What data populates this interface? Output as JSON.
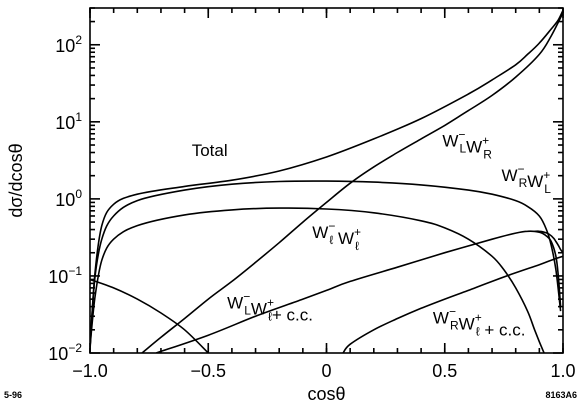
{
  "chart_data": {
    "type": "line",
    "xlabel": "cosθ",
    "ylabel": "dσ/dcosθ",
    "xlim": [
      -1.0,
      1.0
    ],
    "ylim": [
      0.01,
      300
    ],
    "yscale": "log",
    "grid": false,
    "x_ticks": [
      {
        "value": -1.0,
        "label": "−1.0"
      },
      {
        "value": -0.5,
        "label": "−0.5"
      },
      {
        "value": 0.0,
        "label": "0"
      },
      {
        "value": 0.5,
        "label": "0.5"
      },
      {
        "value": 1.0,
        "label": "1.0"
      }
    ],
    "y_ticks": [
      {
        "value": 0.01,
        "base": "10",
        "exp": "−2"
      },
      {
        "value": 0.1,
        "base": "10",
        "exp": "−1"
      },
      {
        "value": 1,
        "base": "10",
        "exp": "0"
      },
      {
        "value": 10,
        "base": "10",
        "exp": "1"
      },
      {
        "value": 100,
        "base": "10",
        "exp": "2"
      }
    ],
    "series": [
      {
        "name": "Total",
        "x": [
          -1.0,
          -0.98,
          -0.95,
          -0.9,
          -0.8,
          -0.6,
          -0.4,
          -0.2,
          0.0,
          0.2,
          0.4,
          0.6,
          0.7,
          0.8,
          0.85,
          0.9,
          0.95,
          0.98,
          1.0
        ],
        "y": [
          0.011,
          0.1,
          0.45,
          0.85,
          1.15,
          1.45,
          1.75,
          2.3,
          3.5,
          6.0,
          11.0,
          23.0,
          35.0,
          55.0,
          75.0,
          105.0,
          160.0,
          210.0,
          280.0
        ]
      },
      {
        "name": "W⁻_L W⁺_R",
        "x": [
          -0.78,
          -0.7,
          -0.6,
          -0.5,
          -0.4,
          -0.3,
          -0.2,
          -0.1,
          0.0,
          0.1,
          0.2,
          0.3,
          0.4,
          0.5,
          0.6,
          0.7,
          0.8,
          0.9,
          0.95,
          1.0
        ],
        "y": [
          0.01,
          0.016,
          0.028,
          0.05,
          0.085,
          0.15,
          0.27,
          0.5,
          0.9,
          1.6,
          2.6,
          4.0,
          6.0,
          9.0,
          14.0,
          22.0,
          38.0,
          75.0,
          130.0,
          260.0
        ]
      },
      {
        "name": "W⁻_R W⁺_L",
        "x": [
          -1.0,
          -0.98,
          -0.95,
          -0.9,
          -0.8,
          -0.6,
          -0.4,
          -0.2,
          0.0,
          0.2,
          0.4,
          0.6,
          0.7,
          0.8,
          0.85,
          0.9,
          0.93,
          0.95,
          0.97,
          0.99
        ],
        "y": [
          0.012,
          0.09,
          0.3,
          0.6,
          0.95,
          1.3,
          1.55,
          1.68,
          1.7,
          1.65,
          1.52,
          1.3,
          1.15,
          0.95,
          0.8,
          0.6,
          0.4,
          0.25,
          0.12,
          0.035
        ]
      },
      {
        "name": "W⁻_ℓ W⁺_ℓ",
        "x": [
          -1.0,
          -0.98,
          -0.95,
          -0.9,
          -0.8,
          -0.6,
          -0.4,
          -0.2,
          0.0,
          0.2,
          0.4,
          0.5,
          0.6,
          0.7,
          0.75,
          0.8,
          0.85,
          0.88,
          0.9,
          0.92
        ],
        "y": [
          0.012,
          0.05,
          0.16,
          0.3,
          0.45,
          0.62,
          0.72,
          0.76,
          0.74,
          0.66,
          0.52,
          0.42,
          0.3,
          0.18,
          0.12,
          0.07,
          0.035,
          0.02,
          0.014,
          0.01
        ]
      },
      {
        "name": "W⁻_L W⁺_ℓ + c.c.",
        "x": [
          -0.72,
          -0.5,
          -0.3,
          -0.1,
          0.0,
          0.1,
          0.3,
          0.5,
          0.7,
          0.8,
          0.85,
          0.9,
          0.93,
          0.95,
          0.97,
          0.98,
          0.99
        ],
        "y": [
          0.01,
          0.017,
          0.03,
          0.05,
          0.065,
          0.085,
          0.13,
          0.2,
          0.3,
          0.36,
          0.38,
          0.37,
          0.33,
          0.28,
          0.18,
          0.1,
          0.04
        ]
      },
      {
        "name": "W⁻_R W⁺_ℓ + c.c.",
        "x": [
          0.07,
          0.1,
          0.2,
          0.3,
          0.4,
          0.5,
          0.6,
          0.7,
          0.8,
          0.9,
          0.95,
          1.0
        ],
        "y": [
          0.01,
          0.013,
          0.02,
          0.028,
          0.038,
          0.05,
          0.065,
          0.085,
          0.11,
          0.14,
          0.16,
          0.18
        ]
      },
      {
        "name": "",
        "x": [
          -1.0,
          -0.9,
          -0.8,
          -0.7,
          -0.6,
          -0.5
        ],
        "y": [
          0.09,
          0.07,
          0.05,
          0.033,
          0.02,
          0.01
        ]
      },
      {
        "name": "",
        "x": [
          0.88,
          0.9,
          0.92,
          0.94,
          0.96,
          0.97,
          0.98,
          0.99,
          1.0
        ],
        "y": [
          0.38,
          0.38,
          0.37,
          0.35,
          0.31,
          0.28,
          0.25,
          0.22,
          0.2
        ]
      }
    ],
    "annotations": [
      {
        "id": "total",
        "parts": [
          {
            "t": "Total"
          }
        ],
        "x": -0.57,
        "y": 3.6
      },
      {
        "id": "wlwr",
        "parts": [
          {
            "t": "W"
          },
          {
            "sup": "−",
            "sub": "L"
          },
          {
            "t": "W"
          },
          {
            "sup": "+",
            "sub": "R"
          }
        ],
        "x": 0.49,
        "y": 4.8
      },
      {
        "id": "wrwl",
        "parts": [
          {
            "t": "W"
          },
          {
            "sup": "−",
            "sub": "R"
          },
          {
            "t": "W"
          },
          {
            "sup": "+",
            "sub": "L"
          }
        ],
        "x": 0.74,
        "y": 1.7
      },
      {
        "id": "wellwell",
        "parts": [
          {
            "t": "W"
          },
          {
            "sup": "−",
            "sub": "ℓ"
          },
          {
            "t": " W"
          },
          {
            "sup": "+",
            "sub": "ℓ"
          }
        ],
        "x": -0.06,
        "y": 0.31
      },
      {
        "id": "wlwell",
        "parts": [
          {
            "t": "W"
          },
          {
            "sup": "−",
            "sub": "L"
          },
          {
            "t": "W"
          },
          {
            "sup": "+",
            "sub": "ℓ"
          },
          {
            "t": "+ c.c."
          }
        ],
        "x": -0.42,
        "y": 0.038
      },
      {
        "id": "wrwell",
        "parts": [
          {
            "t": "W"
          },
          {
            "sup": "−",
            "sub": "R"
          },
          {
            "t": "W"
          },
          {
            "sup": "+",
            "sub": "ℓ"
          },
          {
            "t": " + c.c."
          }
        ],
        "x": 0.45,
        "y": 0.024
      }
    ]
  },
  "footer": {
    "left_code": "5-96",
    "right_code": "8163A6"
  }
}
